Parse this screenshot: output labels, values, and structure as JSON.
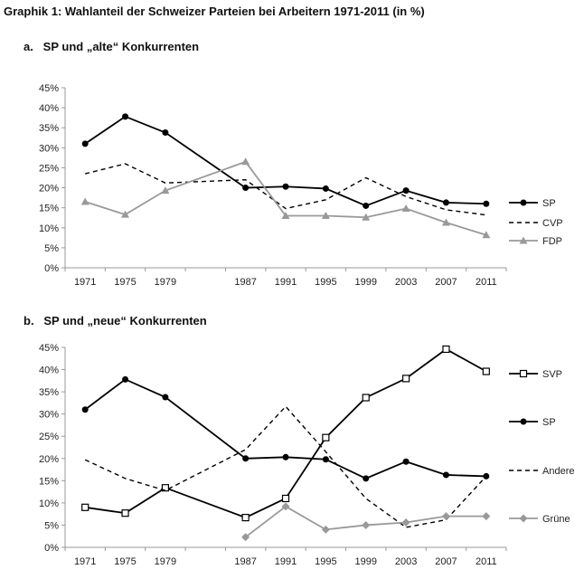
{
  "title": "Graphik 1: Wahlanteil der Schweizer Parteien bei Arbeitern 1971-2011 (in %)",
  "chart_data": [
    {
      "type": "line",
      "subtitle": "a.   SP und „alte“ Konkurrenten",
      "categories": [
        "1971",
        "1975",
        "1979",
        "",
        "1987",
        "1991",
        "1995",
        "1999",
        "2003",
        "2007",
        "2011"
      ],
      "yticks": [
        "0%",
        "5%",
        "10%",
        "15%",
        "20%",
        "25%",
        "30%",
        "35%",
        "40%",
        "45%"
      ],
      "ylim": [
        0,
        45
      ],
      "legend_position": "right",
      "series": [
        {
          "name": "SP",
          "style": "solid-circle",
          "color": "#000000",
          "values": [
            31,
            37.8,
            33.8,
            null,
            20,
            20.3,
            19.8,
            15.5,
            19.3,
            16.3,
            16
          ]
        },
        {
          "name": "CVP",
          "style": "dashed",
          "color": "#000000",
          "values": [
            23.5,
            26,
            21.2,
            null,
            22,
            14.8,
            17,
            22.5,
            17.8,
            14.5,
            13.2
          ]
        },
        {
          "name": "FDP",
          "style": "solid-triangle",
          "color": "#999999",
          "values": [
            16.5,
            13.3,
            19.3,
            null,
            26.5,
            13,
            13,
            12.6,
            14.8,
            11.3,
            8.2
          ]
        }
      ]
    },
    {
      "type": "line",
      "subtitle": "b.   SP und „neue“ Konkurrenten",
      "categories": [
        "1971",
        "1975",
        "1979",
        "",
        "1987",
        "1991",
        "1995",
        "1999",
        "2003",
        "2007",
        "2011"
      ],
      "yticks": [
        "0%",
        "5%",
        "10%",
        "15%",
        "20%",
        "25%",
        "30%",
        "35%",
        "40%",
        "45%"
      ],
      "ylim": [
        0,
        45
      ],
      "legend_position": "right",
      "series": [
        {
          "name": "SVP",
          "style": "solid-open-square",
          "color": "#000000",
          "values": [
            9,
            7.7,
            13.4,
            null,
            6.7,
            11,
            24.7,
            33.7,
            38,
            44.6,
            39.6
          ]
        },
        {
          "name": "SP",
          "style": "solid-circle",
          "color": "#000000",
          "values": [
            31,
            37.8,
            33.8,
            null,
            20,
            20.3,
            19.8,
            15.5,
            19.3,
            16.3,
            16
          ]
        },
        {
          "name": "Andere",
          "style": "dashed",
          "color": "#000000",
          "values": [
            19.7,
            15.5,
            12.8,
            null,
            22,
            31.7,
            21.5,
            11,
            4.5,
            6.2,
            16
          ]
        },
        {
          "name": "Grüne",
          "style": "solid-diamond",
          "color": "#999999",
          "values": [
            null,
            null,
            null,
            null,
            2.3,
            9.2,
            4,
            5,
            5.6,
            7,
            7
          ]
        }
      ]
    }
  ]
}
